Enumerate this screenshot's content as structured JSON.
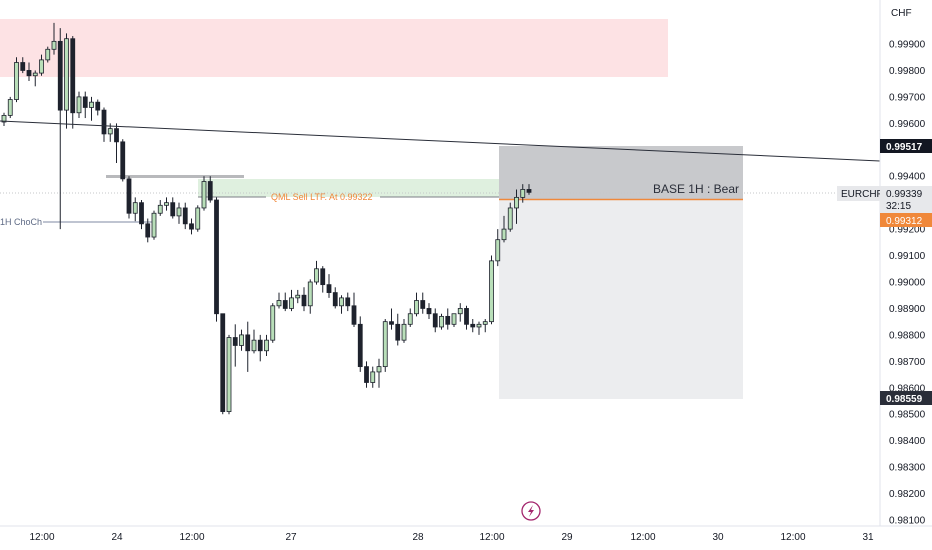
{
  "currency": "CHF",
  "chart_data": {
    "type": "candlestick",
    "symbol": "EURCHF",
    "y_ticks": [
      "0.99900",
      "0.99800",
      "0.99700",
      "0.99600",
      "0.99400",
      "0.99200",
      "0.99100",
      "0.99000",
      "0.98900",
      "0.98800",
      "0.98700",
      "0.98600",
      "0.98500",
      "0.98400",
      "0.98300",
      "0.98200",
      "0.98100"
    ],
    "x_ticks": [
      "12:00",
      "24",
      "12:00",
      "27",
      "28",
      "12:00",
      "29",
      "12:00",
      "30",
      "12:00",
      "31"
    ],
    "trendline_label": "0.99517",
    "price_label": "0.99339",
    "countdown": "32:15",
    "zone_low_label": "0.99312",
    "target_label": "0.98559",
    "annotations": {
      "choch": "1H ChoCh",
      "qml": "QML Sell  LTF. At 0.99322",
      "base": "BASE 1H : Bear"
    },
    "candles": [
      [
        0.99605,
        0.9964,
        0.9959,
        0.9963
      ],
      [
        0.9963,
        0.997,
        0.9962,
        0.9969
      ],
      [
        0.9969,
        0.9985,
        0.9968,
        0.9983
      ],
      [
        0.9983,
        0.9985,
        0.9979,
        0.998
      ],
      [
        0.998,
        0.9983,
        0.9976,
        0.9978
      ],
      [
        0.9978,
        0.998,
        0.9974,
        0.9979
      ],
      [
        0.9979,
        0.9986,
        0.9978,
        0.9984
      ],
      [
        0.9984,
        0.9989,
        0.9983,
        0.9988
      ],
      [
        0.9988,
        0.9998,
        0.9986,
        0.9991
      ],
      [
        0.9991,
        0.9996,
        0.992,
        0.9965
      ],
      [
        0.9965,
        0.9994,
        0.9958,
        0.9992
      ],
      [
        0.9992,
        0.9993,
        0.9958,
        0.9964
      ],
      [
        0.9964,
        0.9972,
        0.9962,
        0.997
      ],
      [
        0.997,
        0.9972,
        0.9962,
        0.9966
      ],
      [
        0.9966,
        0.997,
        0.9961,
        0.9968
      ],
      [
        0.9968,
        0.9969,
        0.9963,
        0.9965
      ],
      [
        0.9965,
        0.9966,
        0.9953,
        0.9956
      ],
      [
        0.9956,
        0.996,
        0.9953,
        0.9958
      ],
      [
        0.9958,
        0.996,
        0.9945,
        0.9953
      ],
      [
        0.9953,
        0.9954,
        0.9938,
        0.9939
      ],
      [
        0.9939,
        0.994,
        0.9924,
        0.9926
      ],
      [
        0.9926,
        0.9932,
        0.9923,
        0.993
      ],
      [
        0.993,
        0.9931,
        0.992,
        0.9922
      ],
      [
        0.9922,
        0.9924,
        0.9915,
        0.9917
      ],
      [
        0.9917,
        0.9927,
        0.9916,
        0.9926
      ],
      [
        0.9926,
        0.9931,
        0.9925,
        0.9929
      ],
      [
        0.9929,
        0.9932,
        0.9927,
        0.993
      ],
      [
        0.993,
        0.9932,
        0.9924,
        0.9925
      ],
      [
        0.9925,
        0.993,
        0.9922,
        0.9928
      ],
      [
        0.9928,
        0.993,
        0.992,
        0.9922
      ],
      [
        0.9922,
        0.9924,
        0.9918,
        0.992
      ],
      [
        0.992,
        0.9929,
        0.9919,
        0.9928
      ],
      [
        0.9928,
        0.994,
        0.9927,
        0.9938
      ],
      [
        0.9938,
        0.994,
        0.993,
        0.9931
      ],
      [
        0.9931,
        0.9932,
        0.9885,
        0.9888
      ],
      [
        0.9888,
        0.9888,
        0.985,
        0.9851
      ],
      [
        0.9851,
        0.988,
        0.985,
        0.9879
      ],
      [
        0.9879,
        0.9884,
        0.9868,
        0.9876
      ],
      [
        0.9876,
        0.9882,
        0.9874,
        0.988
      ],
      [
        0.988,
        0.9885,
        0.9866,
        0.9874
      ],
      [
        0.9874,
        0.9882,
        0.9873,
        0.9878
      ],
      [
        0.9878,
        0.988,
        0.987,
        0.9874
      ],
      [
        0.9874,
        0.988,
        0.9872,
        0.9878
      ],
      [
        0.9878,
        0.9892,
        0.9877,
        0.9891
      ],
      [
        0.9891,
        0.9896,
        0.989,
        0.9893
      ],
      [
        0.9893,
        0.9896,
        0.9889,
        0.989
      ],
      [
        0.989,
        0.9897,
        0.9889,
        0.9894
      ],
      [
        0.9894,
        0.9897,
        0.9892,
        0.9895
      ],
      [
        0.9895,
        0.9898,
        0.9889,
        0.9891
      ],
      [
        0.9891,
        0.9901,
        0.9888,
        0.99
      ],
      [
        0.99,
        0.9908,
        0.9899,
        0.9905
      ],
      [
        0.9905,
        0.9906,
        0.9896,
        0.9899
      ],
      [
        0.9899,
        0.9903,
        0.9894,
        0.9896
      ],
      [
        0.9896,
        0.9898,
        0.989,
        0.9891
      ],
      [
        0.9891,
        0.9895,
        0.9888,
        0.9894
      ],
      [
        0.9894,
        0.9896,
        0.9889,
        0.9891
      ],
      [
        0.9891,
        0.9896,
        0.9883,
        0.9884
      ],
      [
        0.9884,
        0.9887,
        0.9866,
        0.9868
      ],
      [
        0.9868,
        0.987,
        0.986,
        0.9862
      ],
      [
        0.9862,
        0.9868,
        0.986,
        0.9866
      ],
      [
        0.9866,
        0.9871,
        0.986,
        0.9868
      ],
      [
        0.9868,
        0.9886,
        0.9866,
        0.9885
      ],
      [
        0.9885,
        0.989,
        0.9882,
        0.9884
      ],
      [
        0.9884,
        0.9888,
        0.9876,
        0.9878
      ],
      [
        0.9878,
        0.9886,
        0.9877,
        0.9884
      ],
      [
        0.9884,
        0.989,
        0.9883,
        0.9888
      ],
      [
        0.9888,
        0.9896,
        0.9887,
        0.9893
      ],
      [
        0.9893,
        0.9896,
        0.9888,
        0.989
      ],
      [
        0.989,
        0.9892,
        0.9886,
        0.9888
      ],
      [
        0.9888,
        0.989,
        0.9881,
        0.9883
      ],
      [
        0.9883,
        0.9888,
        0.9882,
        0.9887
      ],
      [
        0.9887,
        0.989,
        0.9882,
        0.9884
      ],
      [
        0.9884,
        0.9888,
        0.9883,
        0.9888
      ],
      [
        0.9888,
        0.9892,
        0.9885,
        0.989
      ],
      [
        0.989,
        0.9891,
        0.9882,
        0.9884
      ],
      [
        0.9884,
        0.9886,
        0.9881,
        0.9883
      ],
      [
        0.9883,
        0.9885,
        0.988,
        0.9884
      ],
      [
        0.9884,
        0.9886,
        0.9881,
        0.9885
      ],
      [
        0.9885,
        0.991,
        0.9884,
        0.9908
      ],
      [
        0.9908,
        0.992,
        0.9906,
        0.9916
      ],
      [
        0.9916,
        0.9925,
        0.9915,
        0.992
      ],
      [
        0.992,
        0.993,
        0.9919,
        0.9928
      ],
      [
        0.9928,
        0.9935,
        0.9922,
        0.9932
      ],
      [
        0.9932,
        0.9937,
        0.993,
        0.9935
      ],
      [
        0.9935,
        0.9937,
        0.9933,
        0.99339
      ]
    ]
  }
}
